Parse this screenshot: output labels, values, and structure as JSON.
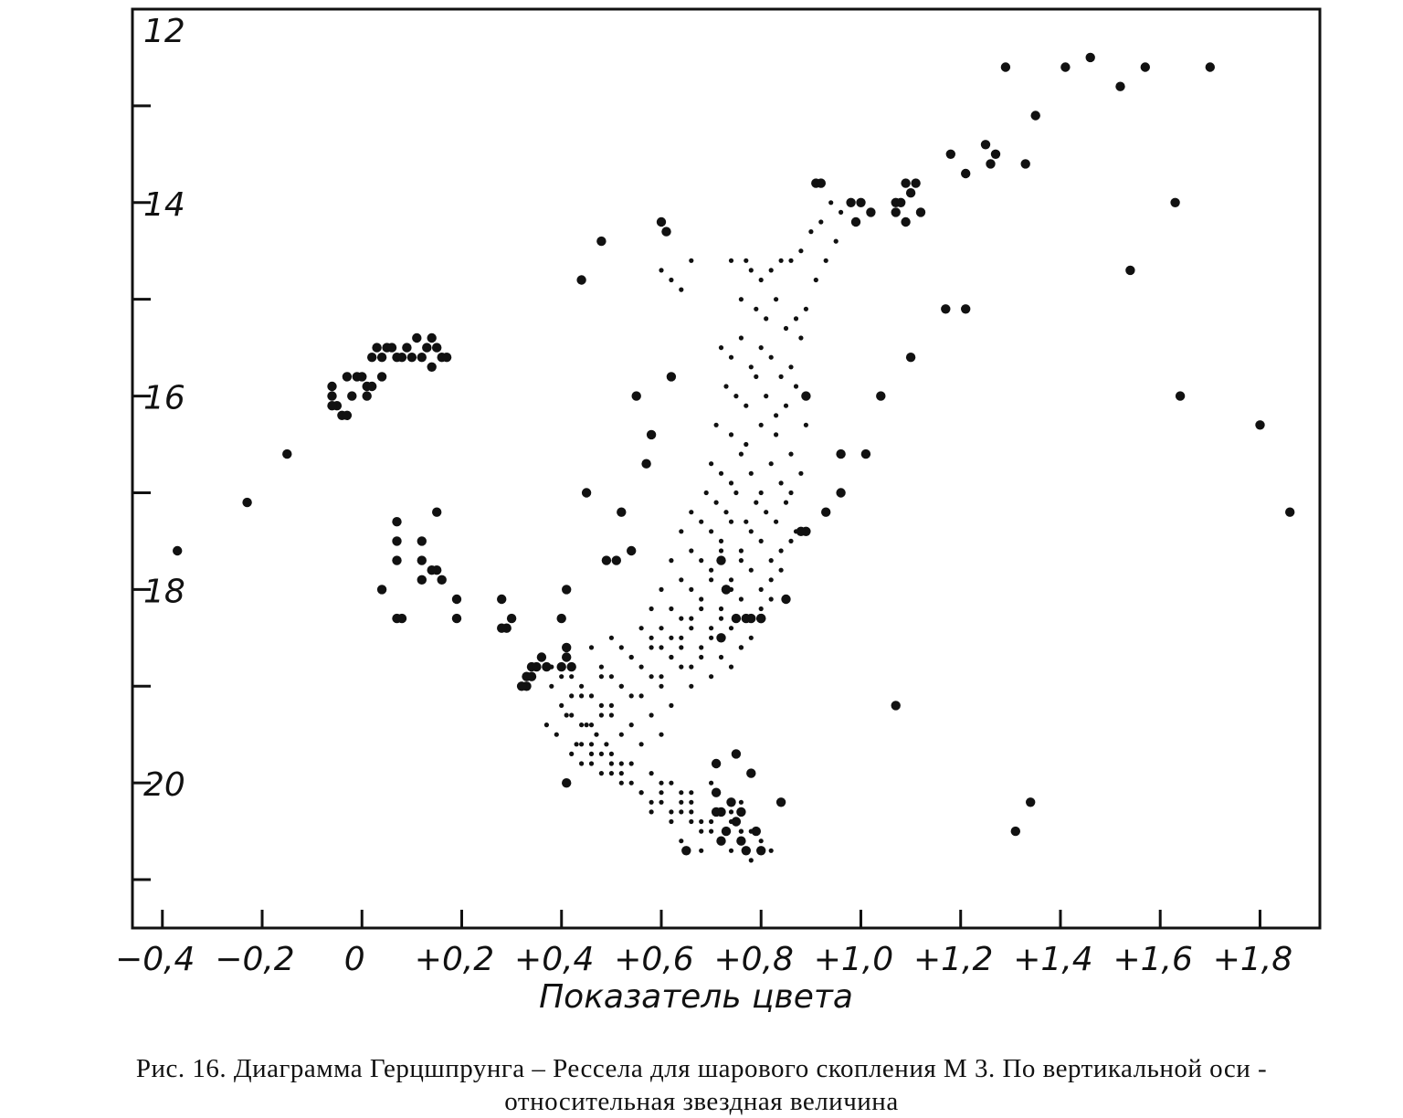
{
  "chart_data": {
    "type": "scatter",
    "xlabel": "Показатель цвета",
    "ylabel": "",
    "xlim": [
      -0.46,
      1.92
    ],
    "ylim": [
      12,
      21.5
    ],
    "y_inverted": true,
    "grid": false,
    "x_ticks": [
      -0.4,
      -0.2,
      0,
      0.2,
      0.4,
      0.6,
      0.8,
      1.0,
      1.2,
      1.4,
      1.6,
      1.8
    ],
    "x_tick_labels": [
      "−0,4",
      "−0,2",
      "0",
      "+0,2",
      "+0,4",
      "+0,6",
      "+0,8",
      "+1,0",
      "+1,2",
      "+1,4",
      "+1,6",
      "+1,8"
    ],
    "y_ticks": [
      12,
      13,
      14,
      15,
      16,
      17,
      18,
      19,
      20,
      21
    ],
    "y_tick_labels": {
      "12": "12",
      "14": "14",
      "16": "16",
      "18": "18",
      "20": "20"
    },
    "series": [
      {
        "marker": "large",
        "x": [
          1.29,
          1.41,
          1.52,
          1.57,
          1.7,
          1.46,
          1.35,
          1.18,
          1.21,
          1.25,
          1.26,
          1.27,
          1.33,
          1.1,
          1.11,
          1.12,
          1.09,
          1.07,
          1.07,
          1.08,
          1.09,
          0.91,
          0.92,
          0.98,
          1.0,
          1.02,
          0.99,
          1.63,
          1.54,
          1.17,
          1.21,
          1.1,
          1.04,
          1.64,
          1.8,
          1.86,
          0.96,
          1.01,
          0.96,
          0.93,
          0.89,
          0.89,
          0.88,
          0.85,
          0.8,
          0.78,
          0.75,
          0.73,
          0.72,
          0.6,
          0.61,
          0.48,
          0.44,
          0.62,
          0.55,
          0.58,
          0.57,
          0.45,
          0.52,
          0.49,
          0.51,
          0.54,
          -0.37,
          -0.23,
          -0.15,
          -0.06,
          -0.06,
          -0.05,
          -0.04,
          -0.03,
          -0.02,
          -0.01,
          -0.06,
          -0.03,
          0.0,
          0.01,
          0.02,
          0.03,
          0.04,
          0.05,
          0.06,
          0.07,
          0.08,
          0.09,
          0.11,
          0.12,
          0.13,
          0.14,
          0.15,
          0.16,
          0.17,
          0.14,
          0.1,
          0.04,
          0.02,
          0.01,
          0.07,
          0.07,
          0.07,
          0.12,
          0.12,
          0.15,
          0.14,
          0.15,
          0.12,
          0.16,
          0.04,
          0.07,
          0.08,
          0.19,
          0.19,
          0.28,
          0.3,
          0.29,
          0.28,
          0.34,
          0.33,
          0.34,
          0.33,
          0.35,
          0.32,
          0.36,
          0.37,
          0.41,
          0.41,
          0.42,
          0.4,
          0.41,
          0.4,
          0.71,
          0.72,
          0.75,
          0.76,
          0.73,
          0.72,
          0.74,
          0.71,
          0.79,
          0.8,
          0.77,
          0.76,
          0.78,
          0.75,
          0.65,
          0.71,
          0.72,
          0.73,
          0.8,
          0.77,
          0.84,
          0.41,
          1.07,
          1.34,
          1.31
        ],
        "y": [
          12.6,
          12.6,
          12.8,
          12.6,
          12.6,
          12.5,
          13.1,
          13.5,
          13.7,
          13.4,
          13.6,
          13.5,
          13.6,
          13.9,
          13.8,
          14.1,
          14.2,
          14.0,
          14.1,
          14.0,
          13.8,
          13.8,
          13.8,
          14.0,
          14.0,
          14.1,
          14.2,
          14.0,
          14.7,
          15.1,
          15.1,
          15.6,
          16.0,
          16.0,
          16.3,
          17.2,
          16.6,
          16.6,
          17.0,
          17.2,
          16.0,
          17.4,
          17.4,
          18.1,
          18.3,
          18.3,
          18.3,
          18.0,
          17.7,
          14.2,
          14.3,
          14.4,
          14.8,
          15.8,
          16.0,
          16.4,
          16.7,
          17.0,
          17.2,
          17.7,
          17.7,
          17.6,
          17.6,
          17.1,
          16.6,
          15.9,
          16.0,
          16.1,
          16.2,
          16.2,
          16.0,
          15.8,
          16.1,
          15.8,
          15.8,
          15.9,
          15.6,
          15.5,
          15.6,
          15.5,
          15.5,
          15.6,
          15.6,
          15.5,
          15.4,
          15.6,
          15.5,
          15.4,
          15.5,
          15.6,
          15.6,
          15.7,
          15.6,
          15.8,
          15.9,
          16.0,
          17.3,
          17.5,
          17.7,
          17.7,
          17.9,
          17.8,
          17.8,
          17.2,
          17.5,
          17.9,
          18.0,
          18.3,
          18.3,
          18.1,
          18.3,
          18.1,
          18.3,
          18.4,
          18.4,
          18.8,
          18.9,
          18.9,
          19.0,
          18.8,
          19.0,
          18.7,
          18.8,
          18.6,
          18.7,
          18.8,
          18.3,
          18.0,
          18.8,
          20.1,
          20.3,
          20.4,
          20.3,
          20.5,
          20.6,
          20.2,
          20.3,
          20.5,
          20.7,
          20.7,
          20.6,
          19.9,
          19.7,
          20.7,
          19.8,
          18.5,
          18.0,
          18.3,
          18.3,
          20.2,
          20.0,
          19.2,
          20.2,
          20.5
        ]
      },
      {
        "marker": "small",
        "x": [
          0.74,
          0.77,
          0.78,
          0.8,
          0.82,
          0.84,
          0.86,
          0.88,
          0.9,
          0.92,
          0.94,
          0.96,
          0.98,
          0.76,
          0.79,
          0.81,
          0.83,
          0.85,
          0.87,
          0.89,
          0.91,
          0.93,
          0.95,
          0.6,
          0.62,
          0.64,
          0.66,
          0.72,
          0.74,
          0.76,
          0.78,
          0.8,
          0.82,
          0.84,
          0.86,
          0.88,
          0.73,
          0.75,
          0.77,
          0.79,
          0.81,
          0.83,
          0.85,
          0.87,
          0.89,
          0.71,
          0.74,
          0.77,
          0.8,
          0.83,
          0.86,
          0.7,
          0.72,
          0.74,
          0.76,
          0.78,
          0.8,
          0.82,
          0.84,
          0.86,
          0.88,
          0.69,
          0.71,
          0.73,
          0.75,
          0.77,
          0.79,
          0.81,
          0.83,
          0.85,
          0.87,
          0.66,
          0.68,
          0.7,
          0.72,
          0.74,
          0.76,
          0.78,
          0.8,
          0.82,
          0.84,
          0.86,
          0.64,
          0.66,
          0.68,
          0.7,
          0.72,
          0.74,
          0.76,
          0.78,
          0.8,
          0.82,
          0.84,
          0.62,
          0.64,
          0.66,
          0.68,
          0.7,
          0.72,
          0.74,
          0.76,
          0.78,
          0.8,
          0.82,
          0.6,
          0.62,
          0.64,
          0.66,
          0.68,
          0.7,
          0.72,
          0.74,
          0.76,
          0.78,
          0.58,
          0.6,
          0.62,
          0.64,
          0.66,
          0.68,
          0.7,
          0.72,
          0.74,
          0.76,
          0.56,
          0.58,
          0.6,
          0.62,
          0.64,
          0.66,
          0.68,
          0.7,
          0.72,
          0.5,
          0.52,
          0.54,
          0.56,
          0.58,
          0.6,
          0.62,
          0.64,
          0.66,
          0.46,
          0.48,
          0.5,
          0.52,
          0.54,
          0.56,
          0.58,
          0.6,
          0.62,
          0.4,
          0.42,
          0.44,
          0.46,
          0.48,
          0.5,
          0.52,
          0.54,
          0.38,
          0.4,
          0.42,
          0.44,
          0.46,
          0.48,
          0.5,
          0.37,
          0.39,
          0.41,
          0.43,
          0.45,
          0.47,
          0.49,
          0.42,
          0.44,
          0.46,
          0.48,
          0.5,
          0.52,
          0.44,
          0.46,
          0.48,
          0.5,
          0.52,
          0.54,
          0.56,
          0.58,
          0.6,
          0.52,
          0.54,
          0.56,
          0.58,
          0.6,
          0.62,
          0.64,
          0.66,
          0.58,
          0.6,
          0.62,
          0.64,
          0.66,
          0.68,
          0.7,
          0.72,
          0.74,
          0.76,
          0.64,
          0.66,
          0.68,
          0.7,
          0.72,
          0.74,
          0.76,
          0.78,
          0.8,
          0.82,
          0.38,
          0.4,
          0.42,
          0.44,
          0.46,
          0.48,
          0.5,
          0.52,
          0.54,
          0.56,
          0.58,
          0.6,
          0.62,
          0.64,
          0.66,
          0.68,
          0.7,
          0.72,
          0.74,
          0.76,
          0.78
        ],
        "y": [
          14.6,
          14.6,
          14.7,
          14.8,
          14.7,
          14.6,
          14.6,
          14.5,
          14.3,
          14.2,
          14.0,
          14.1,
          14.0,
          15.0,
          15.1,
          15.2,
          15.0,
          15.3,
          15.2,
          15.1,
          14.8,
          14.6,
          14.4,
          14.7,
          14.8,
          14.9,
          14.6,
          15.5,
          15.6,
          15.4,
          15.7,
          15.5,
          15.6,
          15.8,
          15.7,
          15.4,
          15.9,
          16.0,
          16.1,
          15.8,
          16.0,
          16.2,
          16.1,
          15.9,
          16.3,
          16.3,
          16.4,
          16.5,
          16.3,
          16.4,
          16.6,
          16.7,
          16.8,
          16.9,
          16.6,
          16.8,
          17.0,
          16.7,
          16.9,
          17.0,
          16.8,
          17.0,
          17.1,
          17.2,
          17.0,
          17.3,
          17.1,
          17.2,
          17.3,
          17.1,
          17.4,
          17.2,
          17.3,
          17.4,
          17.5,
          17.3,
          17.6,
          17.4,
          17.5,
          17.7,
          17.6,
          17.5,
          17.4,
          17.6,
          17.7,
          17.8,
          17.6,
          17.9,
          17.7,
          17.8,
          18.0,
          17.9,
          17.8,
          17.7,
          17.9,
          18.0,
          18.1,
          17.9,
          18.2,
          18.0,
          18.1,
          18.3,
          18.2,
          18.1,
          18.0,
          18.2,
          18.3,
          18.4,
          18.2,
          18.5,
          18.3,
          18.4,
          18.6,
          18.5,
          18.2,
          18.4,
          18.5,
          18.6,
          18.3,
          18.7,
          18.4,
          18.5,
          18.8,
          18.6,
          18.4,
          18.5,
          18.6,
          18.7,
          18.5,
          18.8,
          18.6,
          18.9,
          18.7,
          18.5,
          18.6,
          18.7,
          18.8,
          18.6,
          18.9,
          18.7,
          18.8,
          19.0,
          18.6,
          18.8,
          18.9,
          19.0,
          18.7,
          19.1,
          18.9,
          19.0,
          19.2,
          18.8,
          18.9,
          19.0,
          19.1,
          18.9,
          19.2,
          19.0,
          19.1,
          19.0,
          19.2,
          19.3,
          19.1,
          19.4,
          19.2,
          19.3,
          19.4,
          19.5,
          19.3,
          19.6,
          19.4,
          19.5,
          19.6,
          19.7,
          19.8,
          19.6,
          19.9,
          19.7,
          19.8,
          19.6,
          19.8,
          19.7,
          19.9,
          20.0,
          19.8,
          20.1,
          19.9,
          20.2,
          19.9,
          20.0,
          20.1,
          20.2,
          20.0,
          20.3,
          20.1,
          20.2,
          20.3,
          20.1,
          20.4,
          20.2,
          20.3,
          20.5,
          20.4,
          20.6,
          20.3,
          20.5,
          20.6,
          20.4,
          20.7,
          20.5,
          20.6,
          20.7,
          20.5,
          20.8,
          20.6,
          20.7,
          18.8,
          18.9,
          19.1,
          19.4,
          19.7,
          19.3,
          19.8,
          19.5,
          19.4,
          19.6,
          19.3,
          19.5,
          20.0,
          20.3,
          20.1,
          20.4,
          20.0,
          20.6,
          20.4,
          20.2,
          20.5
        ]
      }
    ]
  },
  "figure": {
    "caption_line1": "Рис. 16. Диаграмма Герцшпрунга – Рессела для шарового скопления М 3. По вертикальной оси -",
    "caption_line2": "относительная звездная величина"
  }
}
